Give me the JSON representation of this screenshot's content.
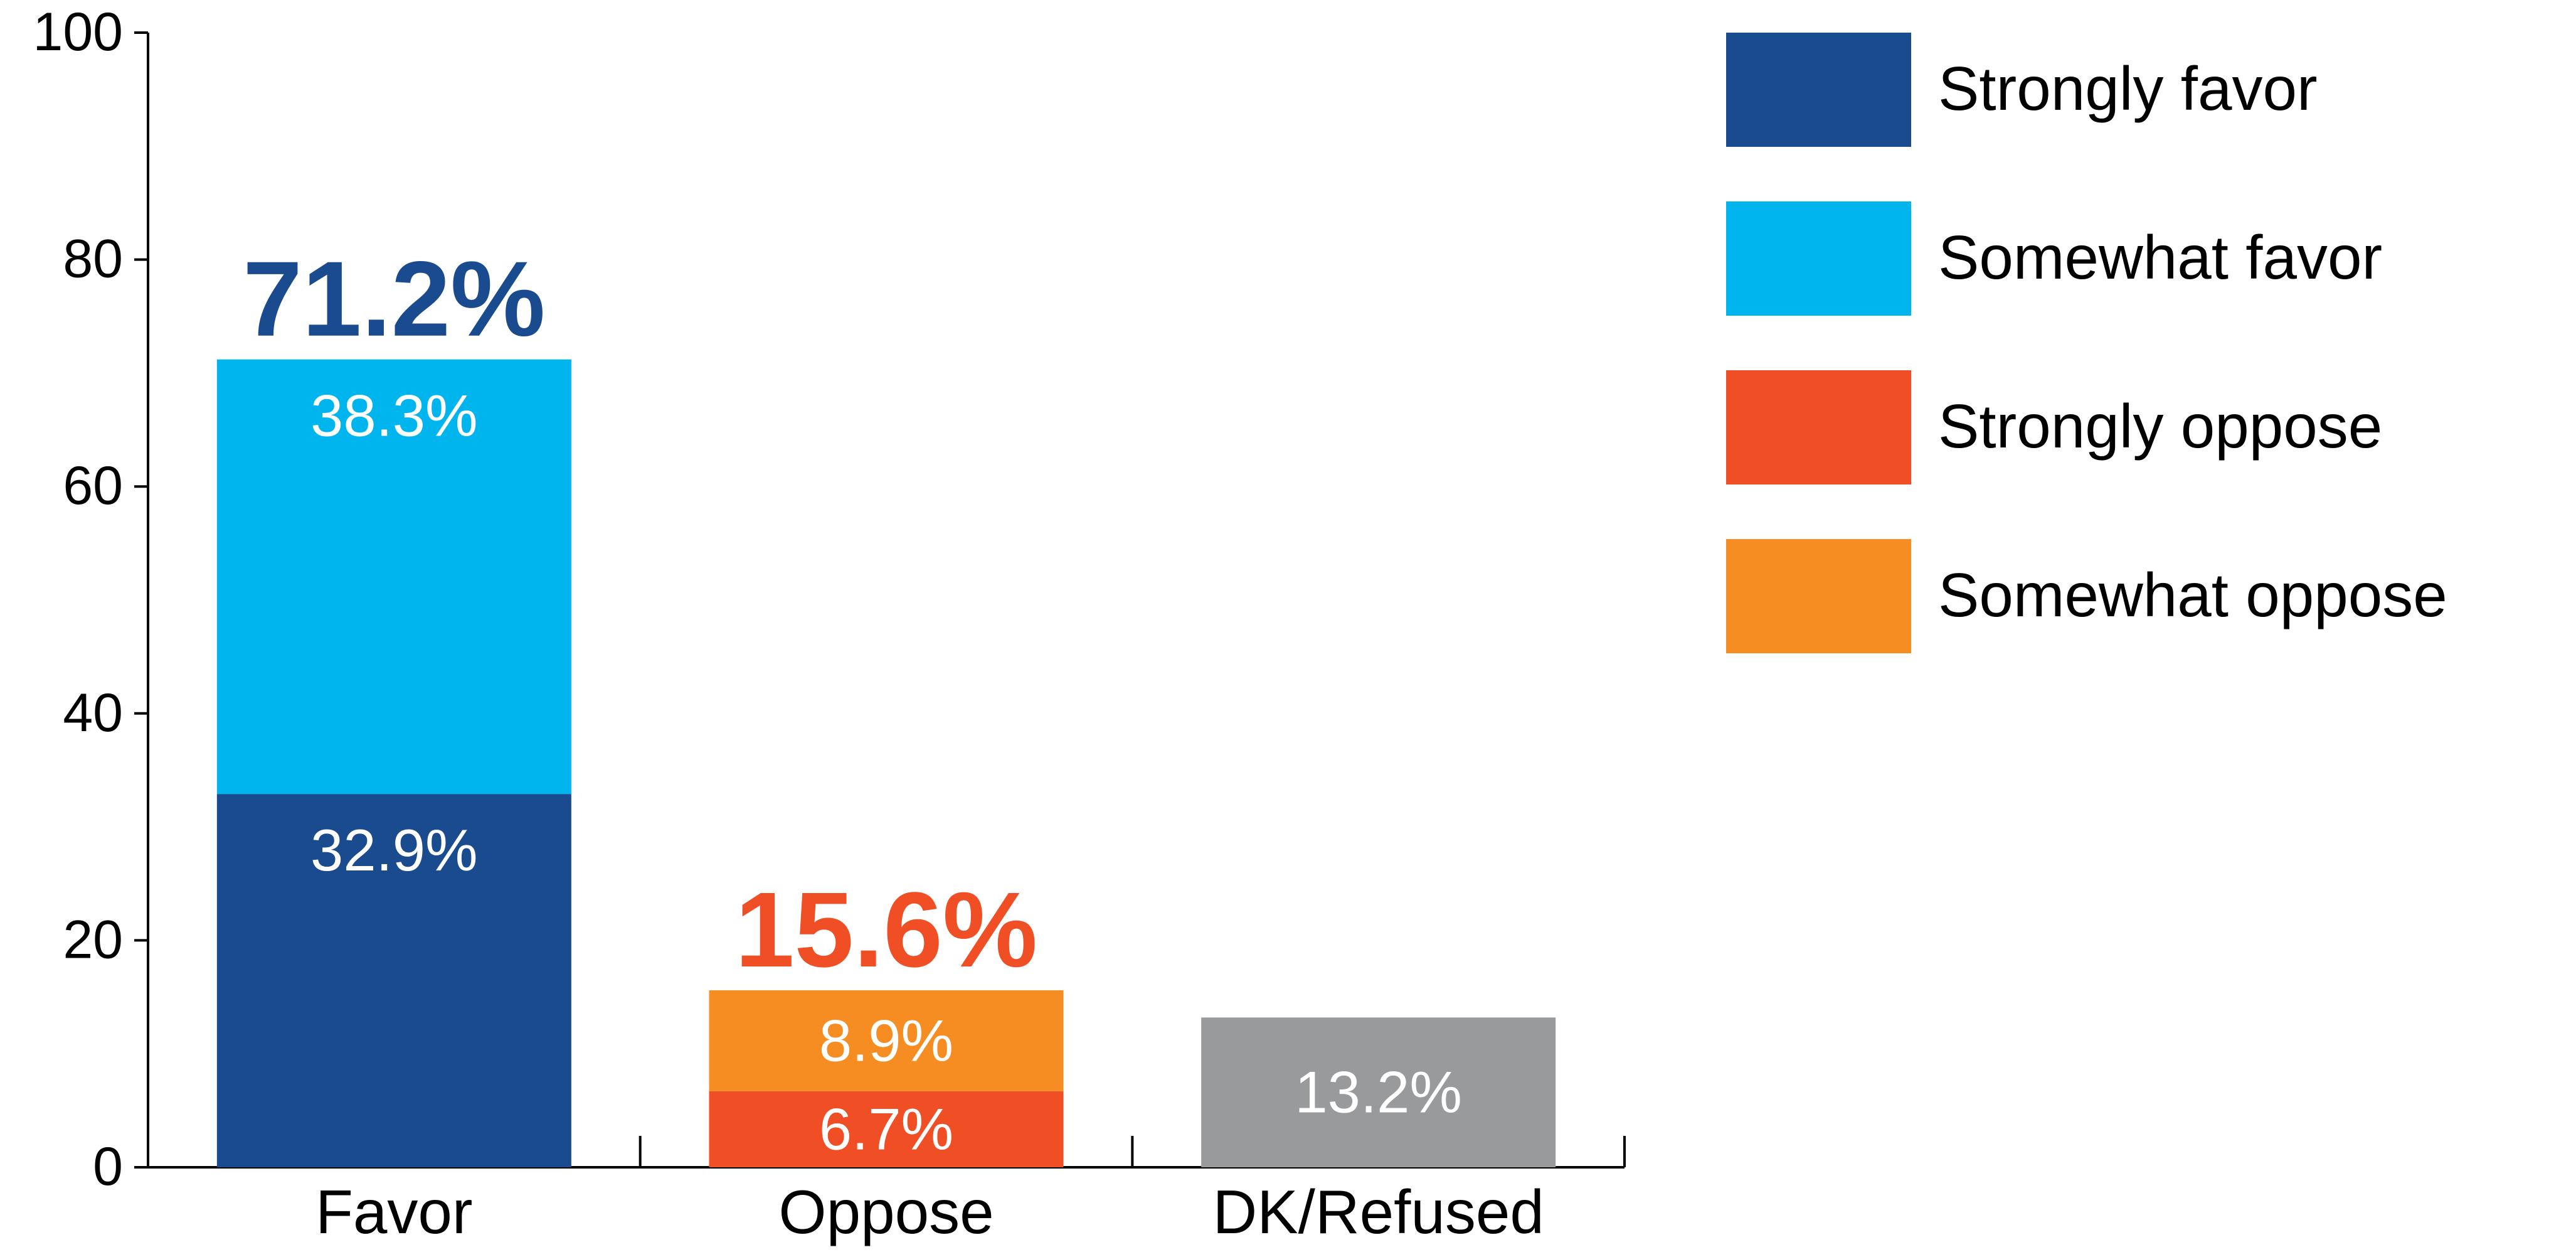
{
  "colors": {
    "strongly_favor": "#1a4b8f",
    "somewhat_favor": "#00b5ee",
    "strongly_oppose": "#f04e24",
    "somewhat_oppose": "#f68d22",
    "dk_refused": "#999a9c",
    "axis": "#000000"
  },
  "chart_data": {
    "type": "bar",
    "stacked": true,
    "categories": [
      "Favor",
      "Oppose",
      "DK/Refused"
    ],
    "ylim": [
      0,
      100
    ],
    "yticks": [
      "0",
      "20",
      "40",
      "60",
      "80",
      "100"
    ],
    "grid": false,
    "legend_position": "right",
    "series": [
      {
        "name": "Strongly favor",
        "values": [
          32.9,
          null,
          null
        ],
        "labels": [
          "32.9%",
          "",
          ""
        ],
        "color_key": "strongly_favor"
      },
      {
        "name": "Somewhat favor",
        "values": [
          38.3,
          null,
          null
        ],
        "labels": [
          "38.3%",
          "",
          ""
        ],
        "color_key": "somewhat_favor"
      },
      {
        "name": "Strongly oppose",
        "values": [
          null,
          6.7,
          null
        ],
        "labels": [
          "",
          "6.7%",
          ""
        ],
        "color_key": "strongly_oppose"
      },
      {
        "name": "Somewhat oppose",
        "values": [
          null,
          8.9,
          null
        ],
        "labels": [
          "",
          "8.9%",
          ""
        ],
        "color_key": "somewhat_oppose"
      },
      {
        "name": "",
        "values": [
          null,
          null,
          13.2
        ],
        "labels": [
          "",
          "",
          "13.2%"
        ],
        "color_key": "dk_refused"
      }
    ],
    "totals": [
      {
        "category": "Favor",
        "value": 71.2,
        "label": "71.2%",
        "color_key": "strongly_favor"
      },
      {
        "category": "Oppose",
        "value": 15.6,
        "label": "15.6%",
        "color_key": "strongly_oppose"
      }
    ],
    "legend": [
      {
        "label": "Strongly favor",
        "color_key": "strongly_favor"
      },
      {
        "label": "Somewhat favor",
        "color_key": "somewhat_favor"
      },
      {
        "label": "Strongly oppose",
        "color_key": "strongly_oppose"
      },
      {
        "label": "Somewhat oppose",
        "color_key": "somewhat_oppose"
      }
    ]
  }
}
